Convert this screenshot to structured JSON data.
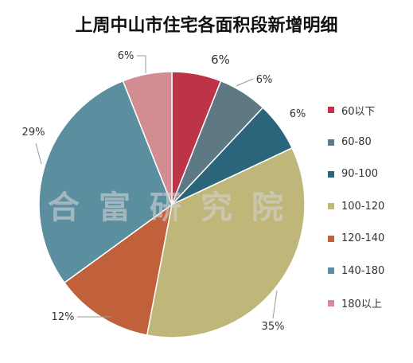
{
  "chart_data": {
    "type": "pie",
    "title": "上周中山市住宅各面积段新增明细",
    "legend_position": "right",
    "slices": [
      {
        "label": "60以下",
        "value": 6,
        "display": "6%",
        "color": "#be3447"
      },
      {
        "label": "60-80",
        "value": 6,
        "display": "6%",
        "color": "#5e7884"
      },
      {
        "label": "90-100",
        "value": 6,
        "display": "6%",
        "color": "#2b657c"
      },
      {
        "label": "100-120",
        "value": 35,
        "display": "35%",
        "color": "#bfb67a"
      },
      {
        "label": "120-140",
        "value": 12,
        "display": "12%",
        "color": "#c0613c"
      },
      {
        "label": "140-180",
        "value": 29,
        "display": "29%",
        "color": "#5b8fa0"
      },
      {
        "label": "180以上",
        "value": 6,
        "display": "6%",
        "color": "#d28d92"
      }
    ]
  },
  "watermark": "合富研究院"
}
